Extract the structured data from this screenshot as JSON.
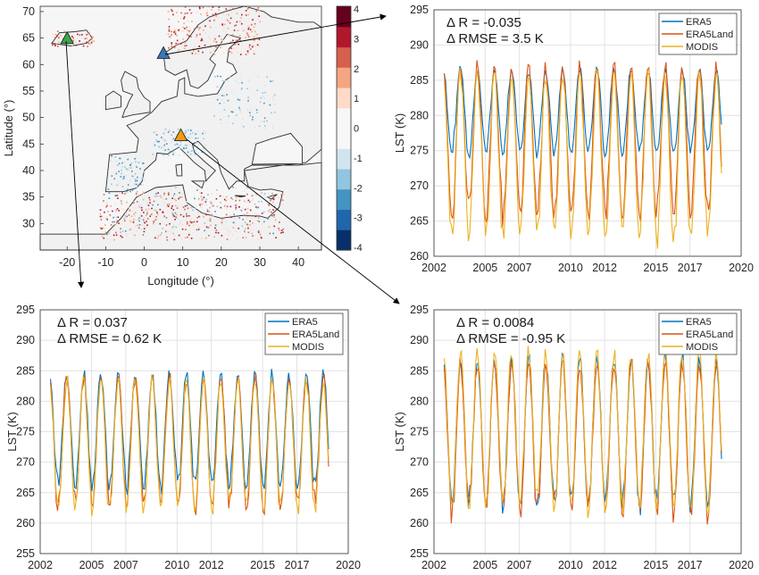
{
  "chart_data": [
    {
      "type": "heatmap",
      "xlabel": "Longitude (°)",
      "ylabel": "Latitude (°)",
      "xlim": [
        -27,
        46
      ],
      "ylim": [
        25,
        71
      ],
      "x_ticks": [
        "-20",
        "-10",
        "0",
        "10",
        "20",
        "30",
        "40"
      ],
      "y_ticks": [
        "30",
        "35",
        "40",
        "45",
        "50",
        "55",
        "60",
        "65",
        "70"
      ],
      "colorbar": {
        "ticks": [
          "4",
          "3",
          "2",
          "1",
          "0",
          "-1",
          "-2",
          "-3",
          "-4"
        ],
        "range": [
          -4,
          4
        ],
        "colors": [
          "#08306b",
          "#2166ac",
          "#4393c3",
          "#92c5de",
          "#d1e5f0",
          "#f7f7f7",
          "#f7f7f7",
          "#fddbc7",
          "#f4a582",
          "#d6604d",
          "#b2182b",
          "#67001f"
        ]
      },
      "markers": [
        {
          "lon": -20,
          "lat": 64.8,
          "color": "#3aa845"
        },
        {
          "lon": 5,
          "lat": 62,
          "color": "#3a78b5"
        },
        {
          "lon": 9.5,
          "lat": 46.5,
          "color": "#f39c12"
        }
      ]
    },
    {
      "type": "line",
      "annotation": [
        "Δ R = -0.035",
        "Δ RMSE = 3.5 K"
      ],
      "ylabel": "LST (K)",
      "xlim": [
        2002,
        2020
      ],
      "ylim": [
        260,
        295
      ],
      "x_ticks": [
        "2002",
        "2005",
        "2007",
        "2010",
        "2012",
        "2015",
        "2017",
        "2020"
      ],
      "y_ticks": [
        "260",
        "265",
        "270",
        "275",
        "280",
        "285",
        "290",
        "295"
      ],
      "legend": [
        "ERA5",
        "ERA5Land",
        "MODIS"
      ],
      "series": [
        {
          "name": "ERA5",
          "color": "#0072bd",
          "peak": 286.5,
          "trough": 274.5
        },
        {
          "name": "ERA5Land",
          "color": "#d95319",
          "peak": 287,
          "trough": 266
        },
        {
          "name": "MODIS",
          "color": "#edb120",
          "peak": 286,
          "trough": 262.5
        }
      ]
    },
    {
      "type": "line",
      "annotation": [
        "Δ R = 0.037",
        "Δ RMSE = 0.62 K"
      ],
      "ylabel": "LST (K)",
      "xlim": [
        2002,
        2020
      ],
      "ylim": [
        255,
        295
      ],
      "x_ticks": [
        "2002",
        "2005",
        "2007",
        "2010",
        "2012",
        "2015",
        "2017",
        "2020"
      ],
      "y_ticks": [
        "255",
        "260",
        "265",
        "270",
        "275",
        "280",
        "285",
        "290",
        "295"
      ],
      "legend": [
        "ERA5",
        "ERA5Land",
        "MODIS"
      ],
      "series": [
        {
          "name": "ERA5",
          "color": "#0072bd",
          "peak": 284.5,
          "trough": 266
        },
        {
          "name": "ERA5Land",
          "color": "#d95319",
          "peak": 284,
          "trough": 263
        },
        {
          "name": "MODIS",
          "color": "#edb120",
          "peak": 283.5,
          "trough": 262.5
        }
      ]
    },
    {
      "type": "line",
      "annotation": [
        "Δ R = 0.0084",
        "Δ RMSE = -0.95 K"
      ],
      "ylabel": "LST (K)",
      "xlim": [
        2002,
        2020
      ],
      "ylim": [
        255,
        295
      ],
      "x_ticks": [
        "2002",
        "2005",
        "2007",
        "2010",
        "2012",
        "2015",
        "2017",
        "2020"
      ],
      "y_ticks": [
        "255",
        "260",
        "265",
        "270",
        "275",
        "280",
        "285",
        "290",
        "295"
      ],
      "legend": [
        "ERA5",
        "ERA5Land",
        "MODIS"
      ],
      "series": [
        {
          "name": "ERA5",
          "color": "#0072bd",
          "peak": 287,
          "trough": 263
        },
        {
          "name": "ERA5Land",
          "color": "#d95319",
          "peak": 286.5,
          "trough": 262
        },
        {
          "name": "MODIS",
          "color": "#edb120",
          "peak": 288,
          "trough": 263
        }
      ]
    }
  ]
}
